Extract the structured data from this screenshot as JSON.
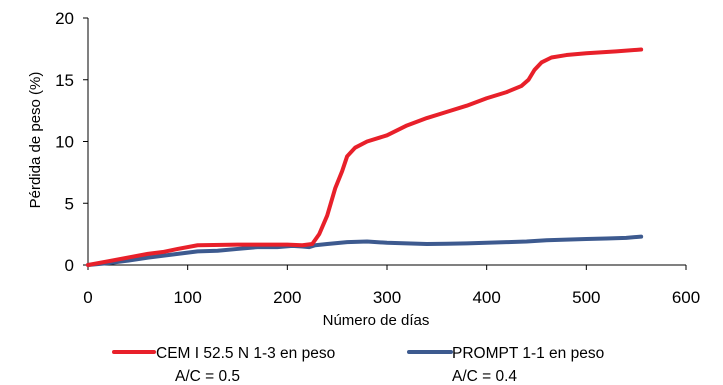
{
  "chart_data": {
    "type": "line",
    "xlabel": "Número de días",
    "ylabel": "Pérdida de peso (%)",
    "xlim": [
      0,
      600
    ],
    "ylim": [
      0,
      20
    ],
    "x_ticks": [
      0,
      100,
      200,
      300,
      400,
      500,
      600
    ],
    "y_ticks": [
      0,
      5,
      10,
      15,
      20
    ],
    "grid": false,
    "legend_position": "bottom",
    "series": [
      {
        "name": "CEM I 52.5 N 1-3 en peso",
        "name_line2": "A/C = 0.5",
        "color": "#e8202a",
        "points": [
          [
            0,
            0
          ],
          [
            20,
            0.3
          ],
          [
            40,
            0.6
          ],
          [
            60,
            0.9
          ],
          [
            75,
            1.05
          ],
          [
            90,
            1.3
          ],
          [
            110,
            1.6
          ],
          [
            150,
            1.65
          ],
          [
            200,
            1.65
          ],
          [
            215,
            1.6
          ],
          [
            225,
            1.7
          ],
          [
            232,
            2.5
          ],
          [
            240,
            4.0
          ],
          [
            248,
            6.2
          ],
          [
            255,
            7.6
          ],
          [
            260,
            8.8
          ],
          [
            268,
            9.5
          ],
          [
            280,
            10.0
          ],
          [
            300,
            10.5
          ],
          [
            320,
            11.3
          ],
          [
            340,
            11.9
          ],
          [
            360,
            12.4
          ],
          [
            380,
            12.9
          ],
          [
            400,
            13.5
          ],
          [
            420,
            14.0
          ],
          [
            435,
            14.5
          ],
          [
            442,
            15.0
          ],
          [
            448,
            15.8
          ],
          [
            455,
            16.4
          ],
          [
            465,
            16.8
          ],
          [
            480,
            17.0
          ],
          [
            500,
            17.15
          ],
          [
            530,
            17.3
          ],
          [
            555,
            17.45
          ]
        ]
      },
      {
        "name": "PROMPT 1-1 en peso",
        "name_line2": "A/C = 0.4",
        "color": "#3d5a8f",
        "points": [
          [
            0,
            0
          ],
          [
            20,
            0.15
          ],
          [
            40,
            0.35
          ],
          [
            60,
            0.6
          ],
          [
            75,
            0.75
          ],
          [
            90,
            0.9
          ],
          [
            110,
            1.1
          ],
          [
            130,
            1.15
          ],
          [
            150,
            1.3
          ],
          [
            170,
            1.45
          ],
          [
            190,
            1.45
          ],
          [
            205,
            1.55
          ],
          [
            215,
            1.5
          ],
          [
            222,
            1.45
          ],
          [
            228,
            1.6
          ],
          [
            240,
            1.7
          ],
          [
            260,
            1.85
          ],
          [
            280,
            1.9
          ],
          [
            300,
            1.8
          ],
          [
            320,
            1.75
          ],
          [
            340,
            1.7
          ],
          [
            360,
            1.72
          ],
          [
            380,
            1.75
          ],
          [
            400,
            1.8
          ],
          [
            420,
            1.85
          ],
          [
            440,
            1.9
          ],
          [
            460,
            2.0
          ],
          [
            480,
            2.05
          ],
          [
            500,
            2.1
          ],
          [
            520,
            2.15
          ],
          [
            540,
            2.2
          ],
          [
            555,
            2.3
          ]
        ]
      }
    ]
  }
}
